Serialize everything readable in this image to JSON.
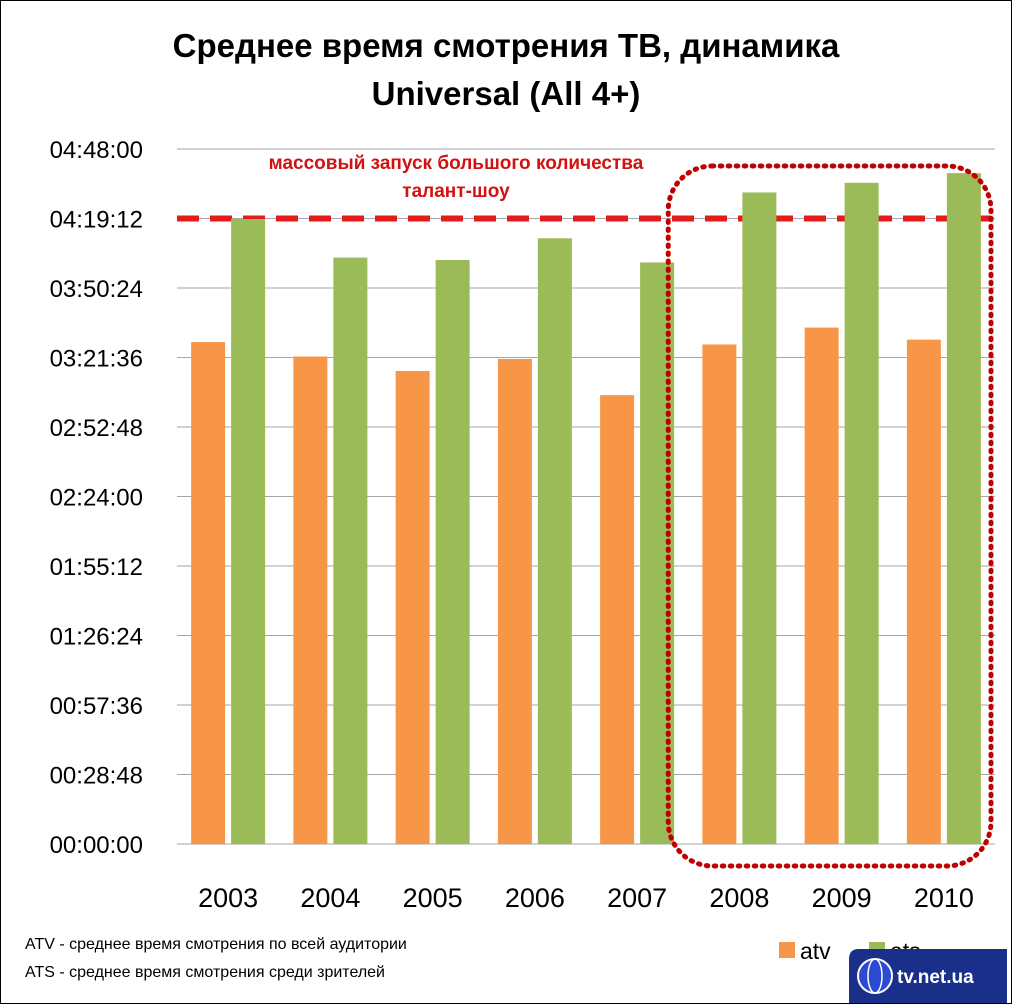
{
  "chart_data": {
    "type": "bar",
    "title": [
      "Среднее время смотрения ТВ, динамика",
      "Universal (All 4+)"
    ],
    "categories": [
      "2003",
      "2004",
      "2005",
      "2006",
      "2007",
      "2008",
      "2009",
      "2010"
    ],
    "series": [
      {
        "name": "atv",
        "color": "#f79646",
        "values_seconds": [
          12480,
          12120,
          11760,
          12060,
          11160,
          12420,
          12840,
          12540
        ]
      },
      {
        "name": "ats",
        "color": "#9bbb59",
        "values_seconds": [
          15540,
          14580,
          14520,
          15060,
          14460,
          16200,
          16440,
          16680
        ]
      }
    ],
    "y_tick_labels": [
      "00:00:00",
      "00:28:48",
      "00:57:36",
      "01:26:24",
      "01:55:12",
      "02:24:00",
      "02:52:48",
      "03:21:36",
      "03:50:24",
      "04:19:12",
      "04:48:00"
    ],
    "ylim_seconds": [
      0,
      17280
    ],
    "grid": true,
    "reference_line": {
      "value_seconds": 15552,
      "color": "#e31b1b",
      "style": "dashed"
    },
    "annotation": [
      "массовый запуск большого количества",
      "талант-шоу"
    ],
    "highlight_region": {
      "from_category": "2008",
      "to_category": "2010",
      "color": "#c00000",
      "style": "dotted"
    },
    "notes": [
      "ATV - среднее время смотрения по всей  аудитории",
      "ATS - среднее время смотрения среди зрителей"
    ],
    "legend": {
      "placement": "bottom-right",
      "entries": [
        "atv",
        "ats"
      ]
    }
  },
  "watermark": {
    "text": "tv.net.ua"
  }
}
